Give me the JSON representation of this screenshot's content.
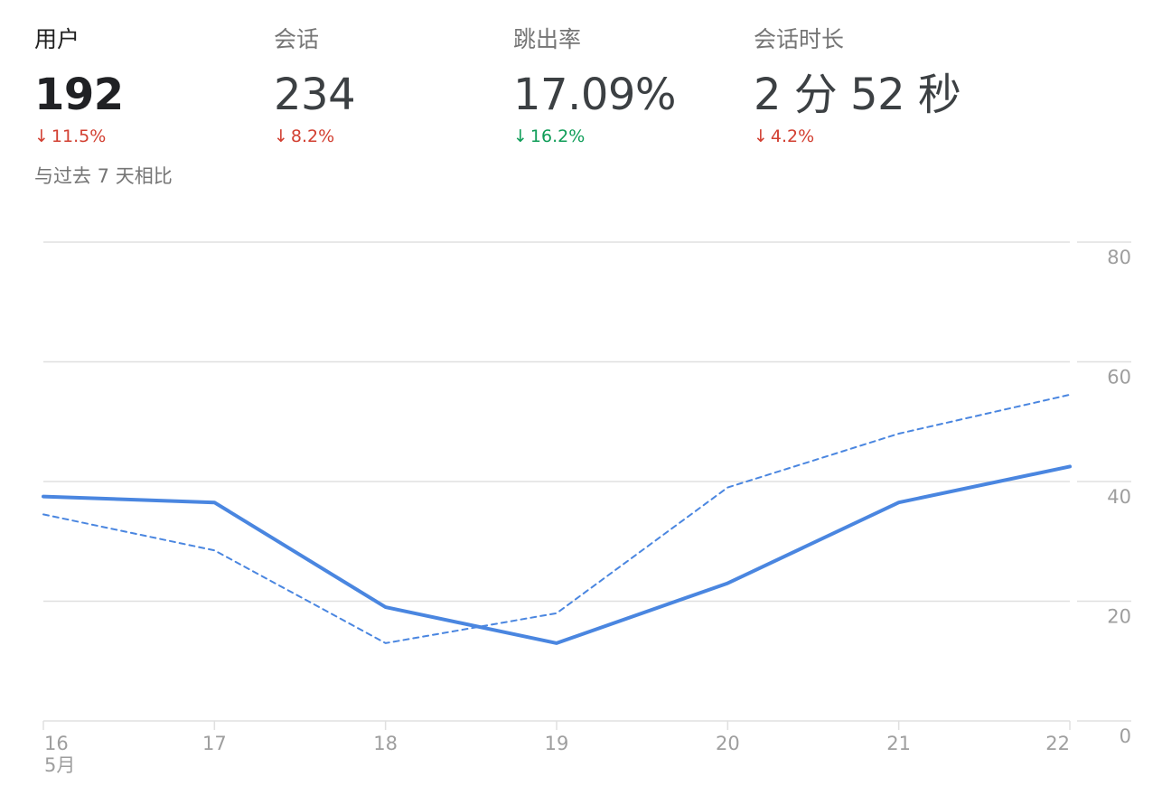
{
  "metrics": [
    {
      "label": "用户",
      "value": "192",
      "change": "11.5%",
      "direction": "down",
      "sentiment": "negative",
      "active": true
    },
    {
      "label": "会话",
      "value": "234",
      "change": "8.2%",
      "direction": "down",
      "sentiment": "negative",
      "active": false
    },
    {
      "label": "跳出率",
      "value": "17.09%",
      "change": "16.2%",
      "direction": "down",
      "sentiment": "positive",
      "active": false
    },
    {
      "label": "会话时长",
      "value": "2 分 52 秒",
      "change": "4.2%",
      "direction": "down",
      "sentiment": "negative",
      "active": false
    }
  ],
  "arrow_icon": "↓",
  "comparison_text": "与过去 7 天相比",
  "colors": {
    "negative": "#d23f31",
    "positive": "#0f9d58",
    "series": "#4a86e0",
    "grid": "#e0e0e0",
    "tick_text": "#9e9e9e"
  },
  "chart_data": {
    "type": "line",
    "x": [
      "16",
      "17",
      "18",
      "19",
      "20",
      "21",
      "22"
    ],
    "x_month_label": "5月",
    "y_ticks": [
      0,
      20,
      40,
      60,
      80
    ],
    "ylim": [
      0,
      80
    ],
    "y_axis_position": "right",
    "grid": true,
    "series": [
      {
        "name": "",
        "style": "solid",
        "values": [
          37.5,
          36.5,
          19,
          13,
          23,
          36.5,
          42.5
        ]
      },
      {
        "name": "",
        "style": "dashed",
        "values": [
          34.5,
          28.5,
          13,
          18,
          39,
          48,
          54.5
        ]
      }
    ]
  }
}
